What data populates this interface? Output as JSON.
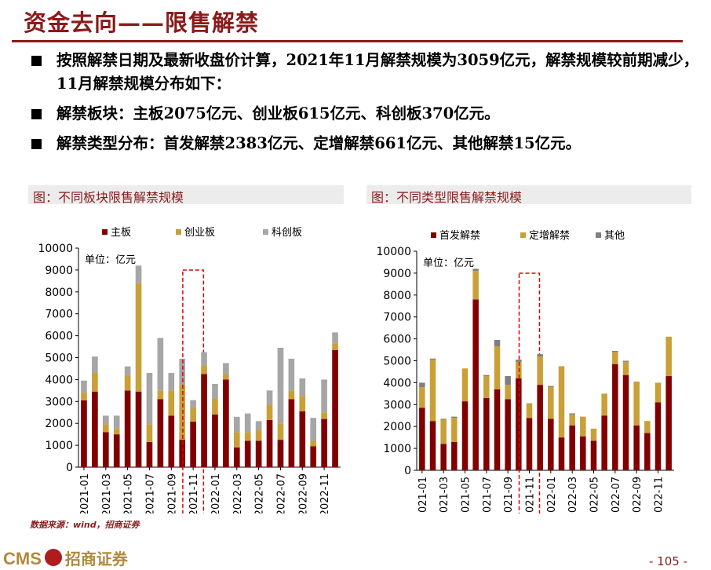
{
  "header": {
    "title": "资金去向——限售解禁"
  },
  "bullets": [
    "按照解禁日期及最新收盘价计算，2021年11月解禁规模为3059亿元，解禁规模较前期减少，11月解禁规模分布如下：",
    "解禁板块：主板2075亿元、创业板615亿元、科创板370亿元。",
    "解禁类型分布：首发解禁2383亿元、定增解禁661亿元、其他解禁15亿元。"
  ],
  "source": "数据来源：wind，招商证券",
  "footer": {
    "logo_text": "CMS",
    "logo_cn": "招商证券",
    "page": "- 105 -"
  },
  "colors": {
    "dark_red": "#8B1A1A",
    "bar_red": "#800000",
    "bar_gold": "#C9A037",
    "bar_gray": "#A6A6A6",
    "bar_darkgray": "#7F7F7F"
  },
  "chart_data": [
    {
      "type": "bar",
      "stacked": true,
      "title": "图：不同板块限售解禁规模",
      "unit_label": "单位：亿元",
      "ylim": [
        0,
        10000
      ],
      "yticks": [
        "0",
        "1000",
        "2000",
        "3000",
        "4000",
        "5000",
        "6000",
        "7000",
        "8000",
        "9000",
        "10000"
      ],
      "categories": [
        "2021-01",
        "2021-02",
        "2021-03",
        "2021-04",
        "2021-05",
        "2021-06",
        "2021-07",
        "2021-08",
        "2021-09",
        "2021-10",
        "2021-11",
        "2021-12",
        "2022-01",
        "2022-02",
        "2022-03",
        "2022-04",
        "2022-05",
        "2022-06",
        "2022-07",
        "2022-08",
        "2022-09",
        "2022-10",
        "2022-11",
        "2022-12"
      ],
      "tick_labels": [
        "2021-01",
        "2021-03",
        "2021-05",
        "2021-07",
        "2021-09",
        "2021-11",
        "2022-01",
        "2022-03",
        "2022-05",
        "2022-07",
        "2022-09",
        "2022-11"
      ],
      "highlight": "2021-11",
      "series": [
        {
          "name": "主板",
          "color": "#800000",
          "values": [
            3050,
            3450,
            1600,
            1500,
            3500,
            3450,
            1150,
            3100,
            2350,
            1250,
            2075,
            4250,
            2400,
            4000,
            900,
            1200,
            1200,
            2150,
            1250,
            3100,
            2550,
            950,
            2200,
            5350
          ]
        },
        {
          "name": "创业板",
          "color": "#C9A037",
          "values": [
            350,
            850,
            350,
            250,
            700,
            4950,
            800,
            400,
            1150,
            2500,
            615,
            400,
            750,
            250,
            700,
            400,
            500,
            700,
            750,
            400,
            700,
            250,
            300,
            300
          ]
        },
        {
          "name": "科创板",
          "color": "#A6A6A6",
          "values": [
            550,
            750,
            400,
            600,
            400,
            800,
            2350,
            2400,
            800,
            1200,
            370,
            600,
            650,
            500,
            700,
            850,
            400,
            650,
            3450,
            1450,
            800,
            1050,
            1500,
            500
          ]
        }
      ]
    },
    {
      "type": "bar",
      "stacked": true,
      "title": "图：不同类型限售解禁规模",
      "unit_label": "单位：亿元",
      "ylim": [
        0,
        10000
      ],
      "yticks": [
        "0",
        "1000",
        "2000",
        "3000",
        "4000",
        "5000",
        "6000",
        "7000",
        "8000",
        "9000",
        "10000"
      ],
      "categories": [
        "2021-01",
        "2021-02",
        "2021-03",
        "2021-04",
        "2021-05",
        "2021-06",
        "2021-07",
        "2021-08",
        "2021-09",
        "2021-10",
        "2021-11",
        "2021-12",
        "2022-01",
        "2022-02",
        "2022-03",
        "2022-04",
        "2022-05",
        "2022-06",
        "2022-07",
        "2022-08",
        "2022-09",
        "2022-10",
        "2022-11",
        "2022-12"
      ],
      "tick_labels": [
        "2021-01",
        "2021-03",
        "2021-05",
        "2021-07",
        "2021-09",
        "2021-11",
        "2022-01",
        "2022-03",
        "2022-05",
        "2022-07",
        "2022-09",
        "2022-11"
      ],
      "highlight": "2021-11",
      "series": [
        {
          "name": "首发解禁",
          "color": "#800000",
          "values": [
            2850,
            2250,
            1200,
            1300,
            3150,
            7800,
            3300,
            3700,
            3250,
            4200,
            2383,
            3900,
            2350,
            1500,
            2050,
            1550,
            1350,
            2500,
            4850,
            4350,
            2050,
            1700,
            3100,
            4300
          ]
        },
        {
          "name": "定增解禁",
          "color": "#C9A037",
          "values": [
            950,
            2800,
            1100,
            1100,
            1500,
            1300,
            1000,
            1950,
            650,
            750,
            661,
            1300,
            1450,
            3250,
            500,
            900,
            550,
            1000,
            550,
            600,
            2000,
            550,
            900,
            1800
          ]
        },
        {
          "name": "其他",
          "color": "#7F7F7F",
          "values": [
            200,
            50,
            50,
            50,
            0,
            100,
            50,
            300,
            400,
            100,
            15,
            100,
            50,
            0,
            50,
            0,
            0,
            0,
            50,
            50,
            0,
            0,
            0,
            0
          ]
        }
      ]
    }
  ]
}
